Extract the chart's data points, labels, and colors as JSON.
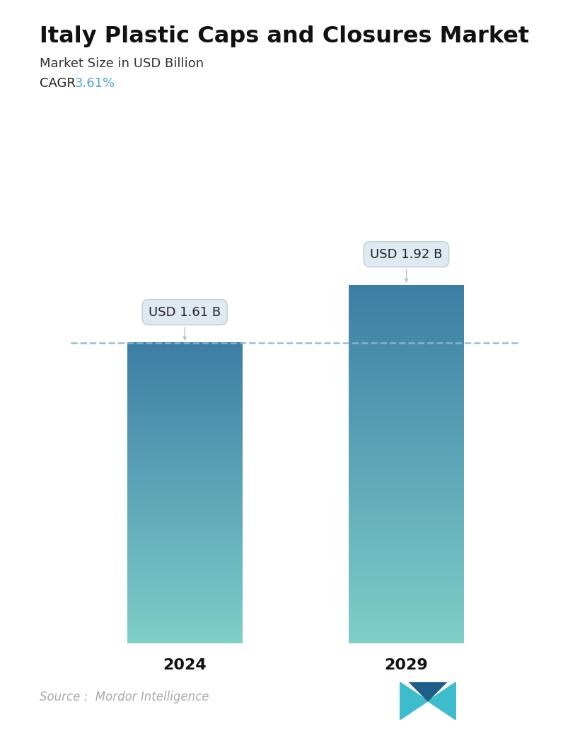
{
  "title": "Italy Plastic Caps and Closures Market",
  "subtitle": "Market Size in USD Billion",
  "cagr_label": "CAGR ",
  "cagr_value": "3.61%",
  "cagr_color": "#4da6d9",
  "categories": [
    "2024",
    "2029"
  ],
  "values": [
    1.61,
    1.92
  ],
  "bar_labels": [
    "USD 1.61 B",
    "USD 1.92 B"
  ],
  "bar_top_color": "#3d7ea6",
  "bar_bottom_color": "#7ecfc8",
  "dashed_line_color": "#89b8d4",
  "dashed_line_value": 1.61,
  "source_text": "Source :  Mordor Intelligence",
  "source_color": "#aaaaaa",
  "background_color": "#ffffff",
  "title_fontsize": 23,
  "subtitle_fontsize": 13,
  "cagr_fontsize": 13,
  "bar_label_fontsize": 13,
  "xtick_fontsize": 16,
  "source_fontsize": 12,
  "ylim": [
    0,
    2.35
  ],
  "bar_width": 0.52
}
